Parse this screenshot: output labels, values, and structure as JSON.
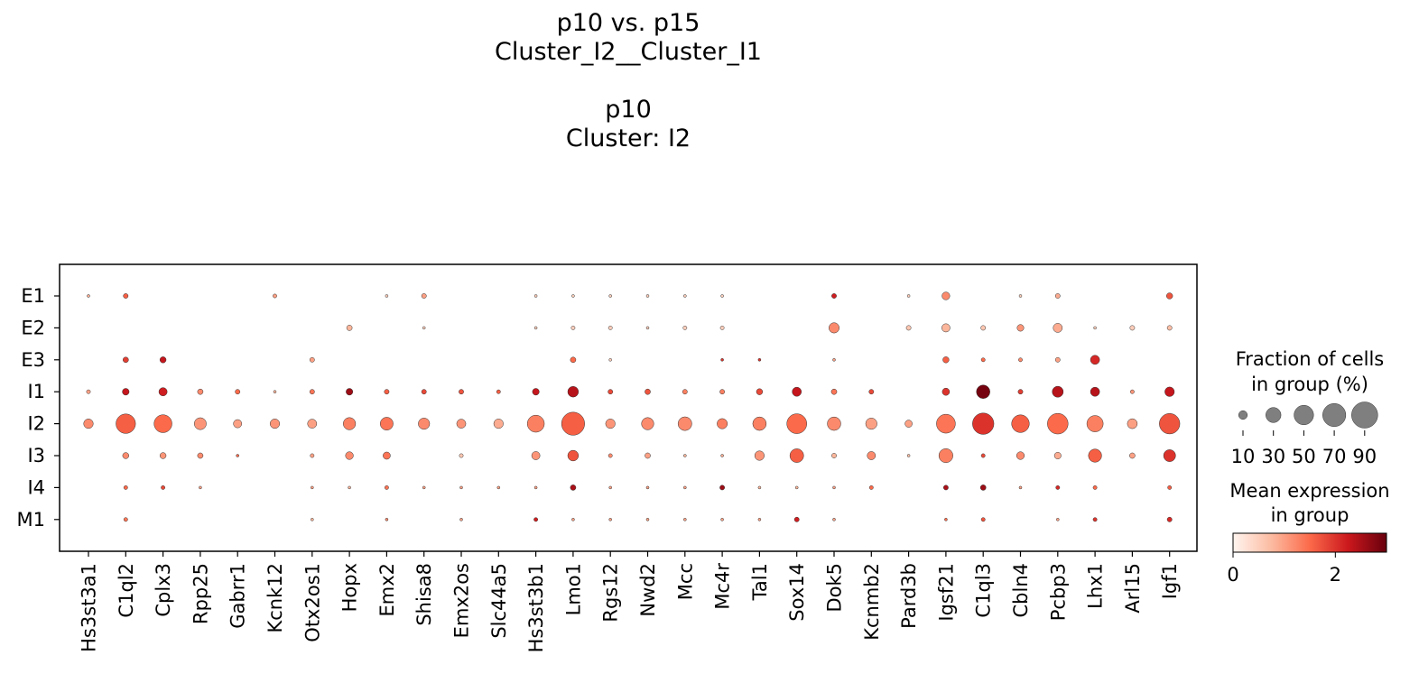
{
  "title_lines": [
    "p10 vs. p15",
    "Cluster_I2__Cluster_I1",
    "",
    "p10",
    "Cluster: I2"
  ],
  "chart_data": {
    "type": "dotplot",
    "genes": [
      "Hs3st3a1",
      "C1ql2",
      "Cplx3",
      "Rpp25",
      "Gabrr1",
      "Kcnk12",
      "Otx2os1",
      "Hopx",
      "Emx2",
      "Shisa8",
      "Emx2os",
      "Slc44a5",
      "Hs3st3b1",
      "Lmo1",
      "Rgs12",
      "Nwd2",
      "Mcc",
      "Mc4r",
      "Tal1",
      "Sox14",
      "Dok5",
      "Kcnmb2",
      "Pard3b",
      "Igsf21",
      "C1ql3",
      "Cbln4",
      "Pcbp3",
      "Lhx1",
      "Arl15",
      "Igf1"
    ],
    "groups": [
      "E1",
      "E2",
      "E3",
      "I1",
      "I2",
      "I3",
      "I4",
      "M1"
    ],
    "fraction_percent": [
      [
        1,
        3,
        0,
        0,
        0,
        2,
        0,
        0,
        1,
        3,
        0,
        0,
        1,
        1,
        1,
        1,
        1,
        1,
        0,
        0,
        3,
        0,
        1,
        8,
        0,
        1,
        3,
        0,
        0,
        5
      ],
      [
        0,
        0,
        0,
        0,
        0,
        0,
        0,
        4,
        0,
        1,
        0,
        0,
        1,
        2,
        2,
        1,
        2,
        2,
        0,
        0,
        14,
        0,
        3,
        9,
        3,
        6,
        11,
        1,
        3,
        3
      ],
      [
        0,
        4,
        5,
        0,
        0,
        0,
        3,
        0,
        0,
        0,
        0,
        0,
        0,
        4,
        1,
        0,
        0,
        1,
        1,
        0,
        1,
        0,
        0,
        5,
        2,
        2,
        3,
        11,
        0,
        0
      ],
      [
        2,
        6,
        9,
        4,
        3,
        1,
        3,
        6,
        3,
        3,
        3,
        2,
        6,
        15,
        3,
        4,
        3,
        3,
        5,
        11,
        4,
        3,
        0,
        7,
        24,
        3,
        16,
        11,
        2,
        12
      ],
      [
        12,
        50,
        42,
        19,
        9,
        12,
        11,
        20,
        22,
        17,
        11,
        12,
        38,
        70,
        12,
        20,
        25,
        14,
        24,
        52,
        24,
        17,
        7,
        47,
        60,
        41,
        56,
        35,
        13,
        55
      ],
      [
        0,
        5,
        5,
        4,
        1,
        0,
        2,
        8,
        7,
        0,
        2,
        0,
        9,
        15,
        2,
        4,
        1,
        1,
        12,
        25,
        3,
        9,
        1,
        26,
        2,
        8,
        6,
        23,
        4,
        19
      ],
      [
        0,
        2,
        2,
        1,
        0,
        0,
        1,
        1,
        2,
        1,
        1,
        1,
        1,
        4,
        1,
        1,
        1,
        3,
        1,
        1,
        1,
        2,
        0,
        3,
        4,
        1,
        2,
        2,
        0,
        2
      ],
      [
        0,
        2,
        0,
        0,
        0,
        0,
        1,
        0,
        1,
        0,
        1,
        0,
        2,
        1,
        1,
        1,
        1,
        1,
        1,
        3,
        1,
        0,
        0,
        1,
        2,
        0,
        1,
        2,
        0,
        3
      ]
    ],
    "mean_expression": [
      [
        0.9,
        1.6,
        0,
        0,
        0,
        1.0,
        0,
        0,
        0.5,
        1.0,
        0,
        0,
        0.5,
        0.5,
        0.5,
        0.5,
        0.5,
        0.5,
        0,
        0,
        2.2,
        0,
        0.5,
        1.2,
        0,
        0.5,
        0.9,
        0,
        0,
        1.7
      ],
      [
        0,
        0,
        0,
        0,
        0,
        0,
        0,
        0.8,
        0,
        0.5,
        0,
        0,
        0.5,
        0.5,
        0.5,
        0.5,
        0.5,
        0.5,
        0,
        0,
        1.2,
        0,
        0.6,
        0.8,
        0.6,
        1.1,
        0.9,
        0.5,
        0.5,
        0.7
      ],
      [
        0,
        1.9,
        2.3,
        0,
        0,
        0,
        1.0,
        0,
        0,
        0,
        0,
        0,
        0,
        1.5,
        0.5,
        0,
        0,
        2.0,
        2.0,
        0,
        1.0,
        0,
        0,
        1.6,
        1.5,
        1.2,
        1.0,
        2.1,
        0,
        0
      ],
      [
        1.0,
        2.3,
        2.2,
        1.2,
        1.5,
        0.8,
        1.4,
        2.6,
        1.6,
        1.8,
        1.7,
        1.6,
        2.3,
        2.4,
        1.8,
        1.7,
        1.3,
        1.3,
        1.8,
        2.3,
        1.4,
        1.8,
        0,
        2.0,
        2.9,
        1.9,
        2.4,
        2.4,
        1.1,
        2.3
      ],
      [
        1.2,
        1.6,
        1.5,
        1.1,
        1.0,
        1.1,
        1.0,
        1.3,
        1.4,
        1.2,
        1.1,
        0.9,
        1.3,
        1.6,
        1.1,
        1.2,
        1.2,
        1.3,
        1.3,
        1.5,
        1.2,
        1.0,
        1.0,
        1.4,
        2.0,
        1.6,
        1.5,
        1.3,
        1.0,
        1.7
      ],
      [
        0,
        1.2,
        1.1,
        1.2,
        1.5,
        0,
        1.0,
        1.2,
        1.4,
        0,
        0.6,
        0,
        1.1,
        1.7,
        1.2,
        1.0,
        0.8,
        0.9,
        1.1,
        1.6,
        0.8,
        1.2,
        0.7,
        1.3,
        1.8,
        1.2,
        0.9,
        1.6,
        1.0,
        2.0
      ],
      [
        0,
        1.5,
        1.8,
        1.0,
        0,
        0,
        1.0,
        0.8,
        1.4,
        1.0,
        1.0,
        1.0,
        1.0,
        2.5,
        1.0,
        1.0,
        1.0,
        2.6,
        0.8,
        0.8,
        1.0,
        1.5,
        0,
        2.5,
        2.6,
        1.0,
        2.1,
        1.5,
        0,
        1.6
      ],
      [
        0,
        1.4,
        0,
        0,
        0,
        0,
        0.8,
        0,
        1.2,
        0,
        1.0,
        0,
        2.2,
        1.0,
        1.0,
        1.0,
        1.0,
        1.0,
        1.0,
        2.2,
        1.0,
        0,
        0,
        1.5,
        1.7,
        0,
        1.0,
        2.0,
        0,
        2.1
      ]
    ],
    "size_legend": {
      "title_lines": [
        "Fraction of cells",
        "in group (%)"
      ],
      "values": [
        10,
        30,
        50,
        70,
        90
      ]
    },
    "color_legend": {
      "title_lines": [
        "Mean expression",
        "in group"
      ],
      "ticks": [
        0,
        2
      ],
      "range": [
        0,
        3
      ],
      "colormap": "Reds",
      "colors": [
        "#fff5f0",
        "#fcbba1",
        "#fb6a4a",
        "#cb181d",
        "#67000d"
      ]
    }
  }
}
